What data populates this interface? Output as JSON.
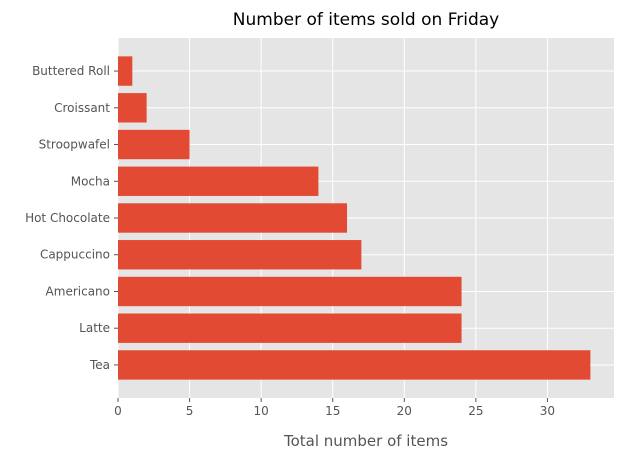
{
  "chart_data": {
    "type": "bar",
    "orientation": "horizontal",
    "title": "Number of items sold on Friday",
    "xlabel": "Total number of items",
    "ylabel": "",
    "categories": [
      "Tea",
      "Latte",
      "Americano",
      "Cappuccino",
      "Hot Chocolate",
      "Mocha",
      "Stroopwafel",
      "Croissant",
      "Buttered Roll"
    ],
    "values": [
      33,
      24,
      24,
      17,
      16,
      14,
      5,
      2,
      1
    ],
    "xlim": [
      0,
      34.65
    ],
    "xticks": [
      0,
      5,
      10,
      15,
      20,
      25,
      30
    ],
    "grid": true,
    "legend": "none",
    "style": "ggplot"
  },
  "colors": {
    "bar": "#E24A33",
    "plot_background": "#E5E5E5",
    "grid": "#FFFFFF",
    "text": "#555555",
    "title": "#000000"
  }
}
